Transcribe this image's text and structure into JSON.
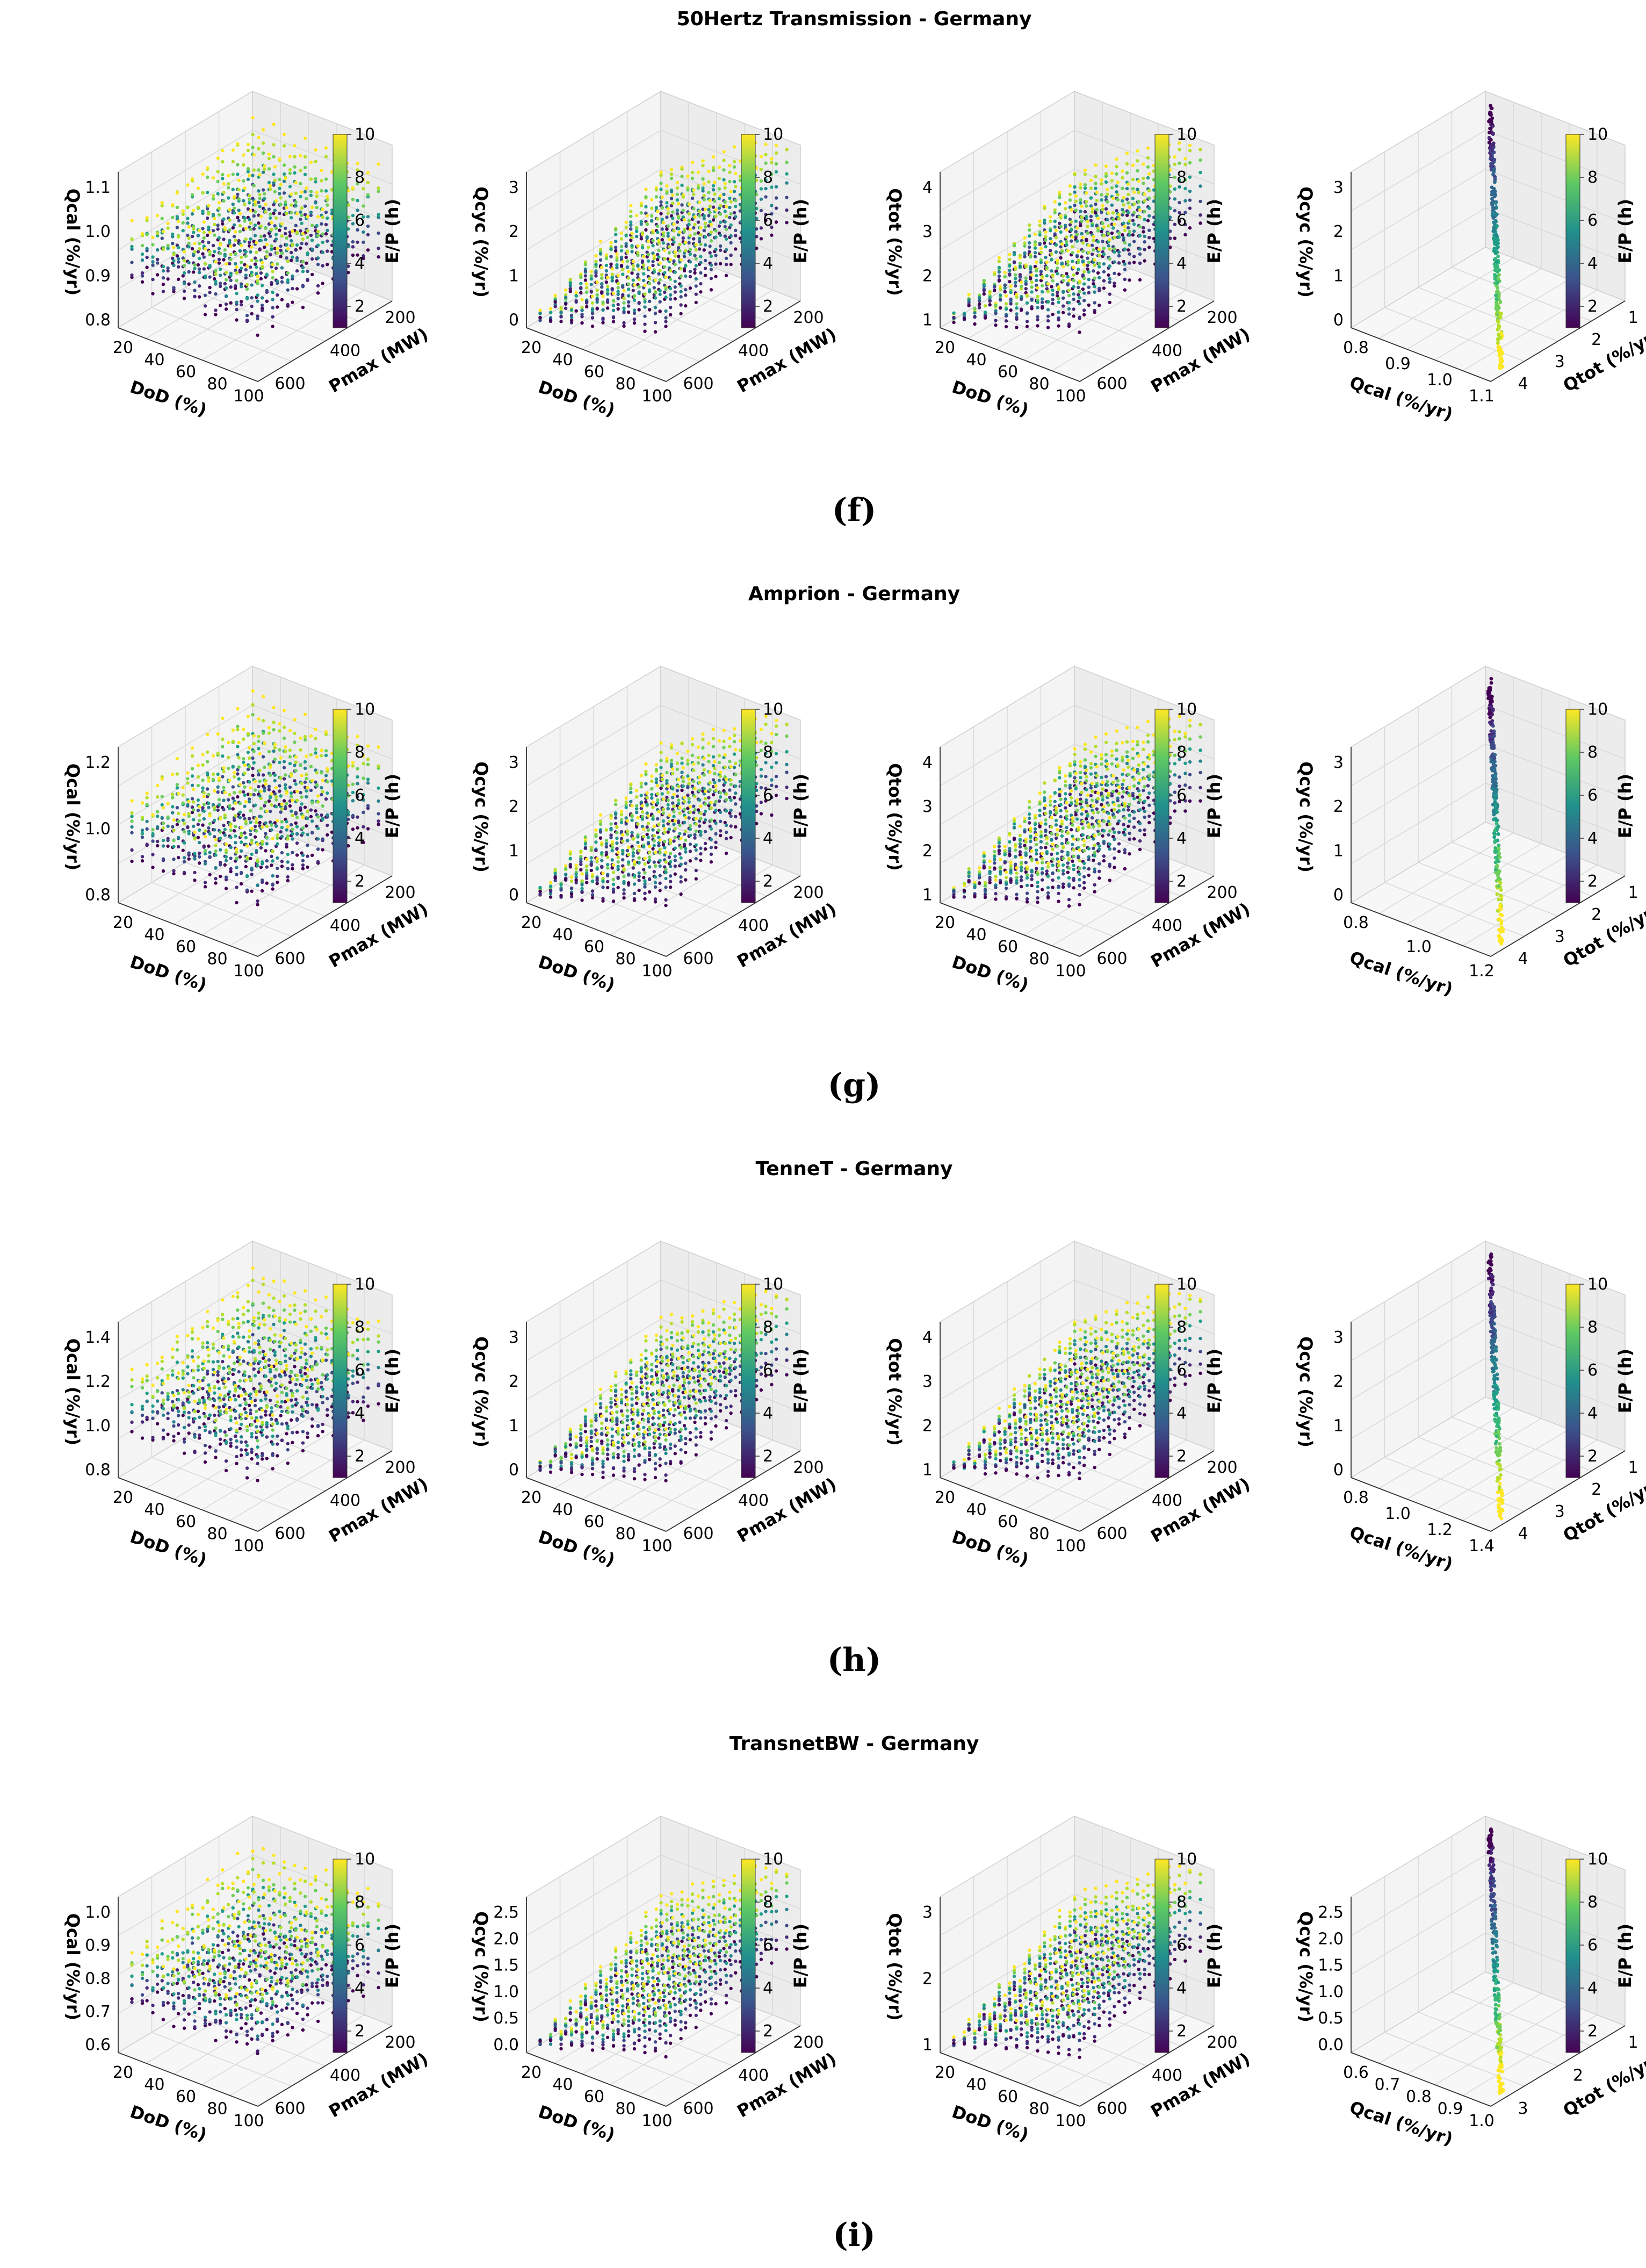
{
  "colorbar": {
    "label": "E/P (h)",
    "ticks": [
      "2",
      "4",
      "6",
      "8",
      "10"
    ],
    "range": [
      1,
      10
    ],
    "colors": [
      "#440154",
      "#3b528b",
      "#21918c",
      "#5ec962",
      "#fde725"
    ]
  },
  "panels": [
    {
      "title": "50Hertz Transmission - Germany",
      "caption": "(f)",
      "charts": [
        {
          "type": "scatter3d",
          "kind": "grid",
          "xlabel": "DoD (%)",
          "ylabel": "Pmax (MW)",
          "zlabel": "Qcal (%/yr)",
          "xticks": [
            "20",
            "40",
            "60",
            "80",
            "100"
          ],
          "yticks": [
            "600",
            "400",
            "200"
          ],
          "zticks": [
            "0.8",
            "0.9",
            "1.0",
            "1.1"
          ],
          "zrange": [
            0.8,
            1.15
          ]
        },
        {
          "type": "scatter3d",
          "kind": "grid",
          "xlabel": "DoD (%)",
          "ylabel": "Pmax (MW)",
          "zlabel": "Qcyc (%/yr)",
          "xticks": [
            "20",
            "40",
            "60",
            "80",
            "100"
          ],
          "yticks": [
            "600",
            "400",
            "200"
          ],
          "zticks": [
            "0",
            "1",
            "2",
            "3"
          ],
          "zrange": [
            0,
            3.6
          ]
        },
        {
          "type": "scatter3d",
          "kind": "grid",
          "xlabel": "DoD (%)",
          "ylabel": "Pmax (MW)",
          "zlabel": "Qtot (%/yr)",
          "xticks": [
            "20",
            "40",
            "60",
            "80",
            "100"
          ],
          "yticks": [
            "600",
            "400",
            "200"
          ],
          "zticks": [
            "1",
            "2",
            "3",
            "4"
          ],
          "zrange": [
            1,
            4.6
          ]
        },
        {
          "type": "scatter3d",
          "kind": "diag",
          "xlabel": "Qcal (%/yr)",
          "ylabel": "Qtot (%/yr)",
          "zlabel": "Qcyc (%/yr)",
          "xticks": [
            "0.8",
            "0.9",
            "1.0",
            "1.1"
          ],
          "yticks": [
            "4",
            "3",
            "2",
            "1"
          ],
          "zticks": [
            "0",
            "1",
            "2",
            "3"
          ],
          "zrange": [
            0,
            3.6
          ]
        }
      ]
    },
    {
      "title": "Amprion - Germany",
      "caption": "(g)",
      "charts": [
        {
          "type": "scatter3d",
          "kind": "grid",
          "xlabel": "DoD (%)",
          "ylabel": "Pmax (MW)",
          "zlabel": "Qcal (%/yr)",
          "xticks": [
            "20",
            "40",
            "60",
            "80",
            "100"
          ],
          "yticks": [
            "600",
            "400",
            "200"
          ],
          "zticks": [
            "0.8",
            "1.0",
            "1.2"
          ],
          "zrange": [
            0.7,
            1.3
          ]
        },
        {
          "type": "scatter3d",
          "kind": "grid",
          "xlabel": "DoD (%)",
          "ylabel": "Pmax (MW)",
          "zlabel": "Qcyc (%/yr)",
          "xticks": [
            "20",
            "40",
            "60",
            "80",
            "100"
          ],
          "yticks": [
            "600",
            "400",
            "200"
          ],
          "zticks": [
            "0",
            "1",
            "2",
            "3"
          ],
          "zrange": [
            0,
            3.6
          ]
        },
        {
          "type": "scatter3d",
          "kind": "grid",
          "xlabel": "DoD (%)",
          "ylabel": "Pmax (MW)",
          "zlabel": "Qtot (%/yr)",
          "xticks": [
            "20",
            "40",
            "60",
            "80",
            "100"
          ],
          "yticks": [
            "600",
            "400",
            "200"
          ],
          "zticks": [
            "1",
            "2",
            "3",
            "4"
          ],
          "zrange": [
            1,
            4.6
          ]
        },
        {
          "type": "scatter3d",
          "kind": "diag",
          "xlabel": "Qcal (%/yr)",
          "ylabel": "Qtot (%/yr)",
          "zlabel": "Qcyc (%/yr)",
          "xticks": [
            "0.8",
            "1.0",
            "1.2"
          ],
          "yticks": [
            "4",
            "3",
            "2",
            "1"
          ],
          "zticks": [
            "0",
            "1",
            "2",
            "3"
          ],
          "zrange": [
            0,
            3.6
          ]
        }
      ]
    },
    {
      "title": "TenneT - Germany",
      "caption": "(h)",
      "charts": [
        {
          "type": "scatter3d",
          "kind": "grid",
          "xlabel": "DoD (%)",
          "ylabel": "Pmax (MW)",
          "zlabel": "Qcal (%/yr)",
          "xticks": [
            "20",
            "40",
            "60",
            "80",
            "100"
          ],
          "yticks": [
            "600",
            "400",
            "200"
          ],
          "zticks": [
            "0.8",
            "1.0",
            "1.2",
            "1.4"
          ],
          "zrange": [
            0.75,
            1.5
          ]
        },
        {
          "type": "scatter3d",
          "kind": "grid",
          "xlabel": "DoD (%)",
          "ylabel": "Pmax (MW)",
          "zlabel": "Qcyc (%/yr)",
          "xticks": [
            "20",
            "40",
            "60",
            "80",
            "100"
          ],
          "yticks": [
            "600",
            "400",
            "200"
          ],
          "zticks": [
            "0",
            "1",
            "2",
            "3"
          ],
          "zrange": [
            0,
            3.8
          ]
        },
        {
          "type": "scatter3d",
          "kind": "grid",
          "xlabel": "DoD (%)",
          "ylabel": "Pmax (MW)",
          "zlabel": "Qtot (%/yr)",
          "xticks": [
            "20",
            "40",
            "60",
            "80",
            "100"
          ],
          "yticks": [
            "600",
            "400",
            "200"
          ],
          "zticks": [
            "1",
            "2",
            "3",
            "4"
          ],
          "zrange": [
            1,
            4.8
          ]
        },
        {
          "type": "scatter3d",
          "kind": "diag",
          "xlabel": "Qcal (%/yr)",
          "ylabel": "Qtot (%/yr)",
          "zlabel": "Qcyc (%/yr)",
          "xticks": [
            "0.8",
            "1.0",
            "1.2",
            "1.4"
          ],
          "yticks": [
            "4",
            "3",
            "2",
            "1"
          ],
          "zticks": [
            "0",
            "1",
            "2",
            "3"
          ],
          "zrange": [
            0,
            3.8
          ]
        }
      ]
    },
    {
      "title": "TransnetBW - Germany",
      "caption": "(i)",
      "charts": [
        {
          "type": "scatter3d",
          "kind": "grid",
          "xlabel": "DoD (%)",
          "ylabel": "Pmax (MW)",
          "zlabel": "Qcal (%/yr)",
          "xticks": [
            "20",
            "40",
            "60",
            "80",
            "100"
          ],
          "yticks": [
            "600",
            "400",
            "200"
          ],
          "zticks": [
            "0.6",
            "0.7",
            "0.8",
            "0.9",
            "1.0"
          ],
          "zrange": [
            0.55,
            1.1
          ]
        },
        {
          "type": "scatter3d",
          "kind": "grid",
          "xlabel": "DoD (%)",
          "ylabel": "Pmax (MW)",
          "zlabel": "Qcyc (%/yr)",
          "xticks": [
            "20",
            "40",
            "60",
            "80",
            "100"
          ],
          "yticks": [
            "600",
            "400",
            "200"
          ],
          "zticks": [
            "0.0",
            "0.5",
            "1.0",
            "1.5",
            "2.0",
            "2.5"
          ],
          "zrange": [
            0,
            2.9
          ]
        },
        {
          "type": "scatter3d",
          "kind": "grid",
          "xlabel": "DoD (%)",
          "ylabel": "Pmax (MW)",
          "zlabel": "Qtot (%/yr)",
          "xticks": [
            "20",
            "40",
            "60",
            "80",
            "100"
          ],
          "yticks": [
            "600",
            "400",
            "200"
          ],
          "zticks": [
            "1",
            "2",
            "3"
          ],
          "zrange": [
            0.8,
            3.9
          ]
        },
        {
          "type": "scatter3d",
          "kind": "diag",
          "xlabel": "Qcal (%/yr)",
          "ylabel": "Qtot (%/yr)",
          "zlabel": "Qcyc (%/yr)",
          "xticks": [
            "0.6",
            "0.7",
            "0.8",
            "0.9",
            "1.0"
          ],
          "yticks": [
            "3",
            "2",
            "1"
          ],
          "zticks": [
            "0.0",
            "0.5",
            "1.0",
            "1.5",
            "2.0",
            "2.5"
          ],
          "zrange": [
            0,
            2.9
          ]
        }
      ]
    }
  ]
}
